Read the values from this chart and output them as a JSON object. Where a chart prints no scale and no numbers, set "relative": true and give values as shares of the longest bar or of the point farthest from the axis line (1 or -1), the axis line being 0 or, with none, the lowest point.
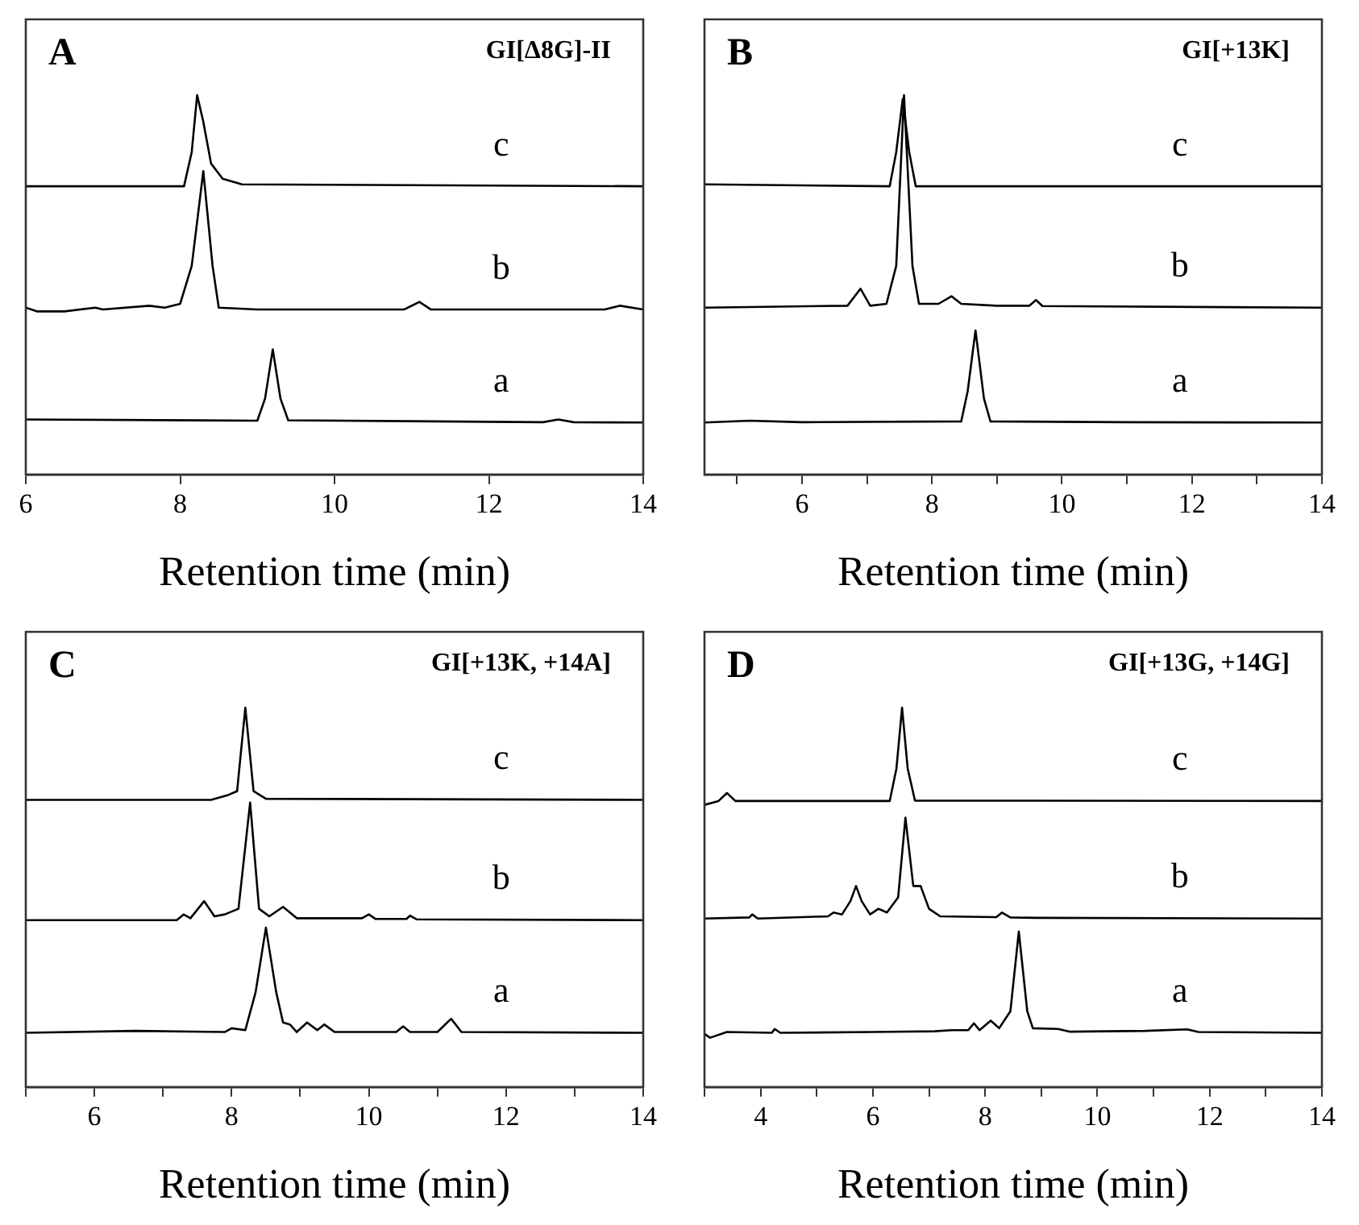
{
  "chart_data": [
    {
      "type": "line",
      "relative": true,
      "xlabel": "Retention time (min)",
      "xlim": [
        6,
        14
      ],
      "xticks": [
        6,
        8,
        10,
        12,
        14
      ],
      "legend": false,
      "annotations": [
        "A",
        "GI[Δ8G]-II"
      ],
      "series": [
        {
          "name": "c",
          "color": "#000000",
          "x": [
            6,
            8.05,
            8.15,
            8.22,
            8.3,
            8.4,
            8.55,
            8.8,
            14
          ],
          "values": [
            0.76,
            0.76,
            0.85,
            1.0,
            0.93,
            0.82,
            0.78,
            0.765,
            0.76
          ]
        },
        {
          "name": "b",
          "color": "#000000",
          "x": [
            6,
            6.15,
            6.5,
            6.9,
            7.0,
            7.6,
            7.8,
            8.0,
            8.15,
            8.3,
            8.42,
            8.5,
            9,
            10.9,
            11.1,
            11.25,
            13.5,
            13.7,
            14
          ],
          "values": [
            0.44,
            0.43,
            0.43,
            0.44,
            0.435,
            0.445,
            0.44,
            0.45,
            0.55,
            0.8,
            0.55,
            0.44,
            0.435,
            0.435,
            0.455,
            0.435,
            0.435,
            0.445,
            0.435
          ]
        },
        {
          "name": "a",
          "color": "#000000",
          "x": [
            6,
            9.0,
            9.1,
            9.2,
            9.3,
            9.4,
            12.7,
            12.9,
            13.1,
            14
          ],
          "values": [
            0.145,
            0.142,
            0.2,
            0.33,
            0.2,
            0.143,
            0.138,
            0.145,
            0.138,
            0.137
          ]
        }
      ]
    },
    {
      "type": "line",
      "relative": true,
      "xlabel": "Retention time (min)",
      "xlim": [
        4.5,
        14
      ],
      "xticks": [
        {
          "value": 5,
          "label": null
        },
        6,
        {
          "value": 7,
          "label": null
        },
        8,
        {
          "value": 9,
          "label": null
        },
        10,
        {
          "value": 11,
          "label": null
        },
        12,
        {
          "value": 13,
          "label": null
        },
        14
      ],
      "legend": false,
      "annotations": [
        "B",
        "GI[+13K]"
      ],
      "series": [
        {
          "name": "c",
          "color": "#000000",
          "x": [
            4.5,
            7.35,
            7.45,
            7.55,
            7.65,
            7.75,
            14
          ],
          "values": [
            0.765,
            0.76,
            0.85,
            0.99,
            0.85,
            0.76,
            0.76
          ]
        },
        {
          "name": "b",
          "color": "#000000",
          "x": [
            4.5,
            6.7,
            6.9,
            7.05,
            7.3,
            7.45,
            7.57,
            7.7,
            7.8,
            8.1,
            8.3,
            8.45,
            9.0,
            9.5,
            9.6,
            9.7,
            14
          ],
          "values": [
            0.44,
            0.445,
            0.49,
            0.445,
            0.45,
            0.55,
            1.0,
            0.55,
            0.45,
            0.45,
            0.47,
            0.45,
            0.445,
            0.445,
            0.46,
            0.444,
            0.44
          ]
        },
        {
          "name": "a",
          "color": "#000000",
          "x": [
            4.5,
            5.2,
            6,
            8.45,
            8.55,
            8.67,
            8.8,
            8.9,
            11,
            14
          ],
          "values": [
            0.137,
            0.142,
            0.138,
            0.14,
            0.22,
            0.38,
            0.2,
            0.14,
            0.138,
            0.137
          ]
        }
      ]
    },
    {
      "type": "line",
      "relative": true,
      "xlabel": "Retention time (min)",
      "xlim": [
        5,
        14
      ],
      "xticks": [
        {
          "value": 5,
          "label": null
        },
        6,
        {
          "value": 7,
          "label": null
        },
        8,
        {
          "value": 9,
          "label": null
        },
        10,
        {
          "value": 11,
          "label": null
        },
        12,
        {
          "value": 13,
          "label": null
        },
        14
      ],
      "legend": false,
      "annotations": [
        "C",
        "GI[+13K, +14A]"
      ],
      "series": [
        {
          "name": "c",
          "color": "#000000",
          "x": [
            5,
            7.7,
            7.95,
            8.08,
            8.2,
            8.32,
            8.5,
            14
          ],
          "values": [
            0.757,
            0.757,
            0.77,
            0.78,
            1.0,
            0.78,
            0.76,
            0.757
          ]
        },
        {
          "name": "b",
          "color": "#000000",
          "x": [
            5,
            7.2,
            7.3,
            7.4,
            7.6,
            7.75,
            7.9,
            8.1,
            8.27,
            8.4,
            8.55,
            8.75,
            8.95,
            9.9,
            10.0,
            10.1,
            10.55,
            10.6,
            10.7,
            14
          ],
          "values": [
            0.44,
            0.44,
            0.455,
            0.445,
            0.49,
            0.45,
            0.455,
            0.47,
            0.75,
            0.47,
            0.45,
            0.475,
            0.445,
            0.445,
            0.455,
            0.443,
            0.443,
            0.452,
            0.442,
            0.44
          ]
        },
        {
          "name": "a",
          "color": "#000000",
          "x": [
            5,
            6.6,
            7.9,
            8.0,
            8.2,
            8.35,
            8.5,
            8.65,
            8.75,
            8.85,
            8.95,
            9.1,
            9.25,
            9.35,
            9.5,
            10.4,
            10.5,
            10.6,
            11.0,
            11.2,
            11.35,
            14
          ],
          "values": [
            0.143,
            0.148,
            0.145,
            0.155,
            0.15,
            0.25,
            0.42,
            0.25,
            0.17,
            0.165,
            0.145,
            0.17,
            0.15,
            0.165,
            0.145,
            0.145,
            0.16,
            0.145,
            0.145,
            0.18,
            0.145,
            0.143
          ]
        }
      ]
    },
    {
      "type": "line",
      "relative": true,
      "xlabel": "Retention time (min)",
      "xlim": [
        3,
        14
      ],
      "xticks": [
        {
          "value": 3,
          "label": null
        },
        4,
        {
          "value": 5,
          "label": null
        },
        6,
        {
          "value": 7,
          "label": null
        },
        8,
        {
          "value": 9,
          "label": null
        },
        10,
        {
          "value": 11,
          "label": null
        },
        12,
        {
          "value": 13,
          "label": null
        },
        14
      ],
      "legend": false,
      "annotations": [
        "D",
        "GI[+13G, +14G]"
      ],
      "series": [
        {
          "name": "c",
          "color": "#000000",
          "x": [
            3,
            3.25,
            3.4,
            3.55,
            6.3,
            6.42,
            6.52,
            6.62,
            6.75,
            14
          ],
          "values": [
            0.744,
            0.754,
            0.775,
            0.754,
            0.754,
            0.84,
            1.0,
            0.84,
            0.755,
            0.754
          ]
        },
        {
          "name": "b",
          "color": "#000000",
          "x": [
            3,
            3.8,
            3.85,
            3.95,
            5.2,
            5.3,
            5.45,
            5.6,
            5.7,
            5.8,
            5.95,
            6.1,
            6.25,
            6.45,
            6.58,
            6.72,
            6.85,
            7.0,
            7.2,
            8.2,
            8.3,
            8.45,
            8.9,
            14
          ],
          "values": [
            0.444,
            0.447,
            0.455,
            0.444,
            0.45,
            0.46,
            0.455,
            0.49,
            0.53,
            0.49,
            0.455,
            0.47,
            0.46,
            0.5,
            0.71,
            0.53,
            0.53,
            0.47,
            0.45,
            0.448,
            0.46,
            0.447,
            0.446,
            0.444
          ]
        },
        {
          "name": "a",
          "color": "#000000",
          "x": [
            3,
            3.1,
            3.4,
            4.2,
            4.25,
            4.35,
            6.0,
            7.1,
            7.4,
            7.7,
            7.8,
            7.9,
            8.1,
            8.25,
            8.45,
            8.6,
            8.75,
            8.85,
            9.3,
            9.5,
            10.85,
            11.6,
            11.8,
            14
          ],
          "values": [
            0.14,
            0.13,
            0.145,
            0.143,
            0.153,
            0.143,
            0.145,
            0.147,
            0.15,
            0.15,
            0.168,
            0.15,
            0.175,
            0.155,
            0.2,
            0.41,
            0.2,
            0.155,
            0.153,
            0.146,
            0.148,
            0.152,
            0.145,
            0.143
          ]
        }
      ]
    }
  ]
}
